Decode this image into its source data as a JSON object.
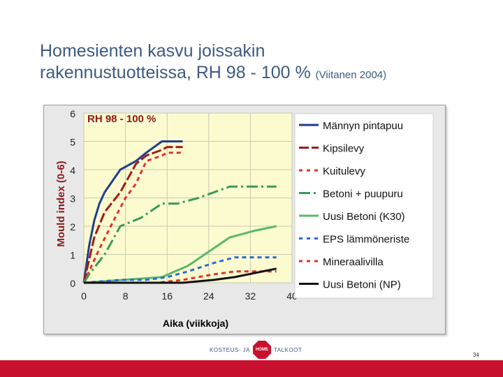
{
  "slide": {
    "title_line1": "Homesienten kasvu joissakin",
    "title_line2": "rakennustuotteissa, RH 98 - 100 %",
    "title_source": "(Viitanen 2004)",
    "page_number": "34",
    "logo_left": "KOSTEUS- JA",
    "logo_sign": "HOME",
    "logo_right": "TALKOOT"
  },
  "colors": {
    "plot_bg": "#fbfbcf",
    "frame_bg": "#e8e8e8",
    "title": "#3d5a80",
    "footer": "#c8102e"
  },
  "chart_data": {
    "type": "line",
    "title": "RH 98 - 100 %",
    "xlabel": "Aika (viikkoja)",
    "ylabel": "Mould index (0-6)",
    "xlim": [
      0,
      40
    ],
    "ylim": [
      0,
      6
    ],
    "xticks": [
      0,
      8,
      16,
      24,
      32,
      40
    ],
    "yticks": [
      0,
      1,
      2,
      3,
      4,
      5,
      6
    ],
    "grid": true,
    "legend_position": "right",
    "series": [
      {
        "name": "Männyn pintapuu",
        "color": "#1f3f8f",
        "dash": "solid",
        "x": [
          0,
          1,
          2,
          3,
          4,
          7,
          10,
          12,
          15,
          16,
          19
        ],
        "y": [
          0,
          1.3,
          2.2,
          2.8,
          3.2,
          4.0,
          4.3,
          4.6,
          5.0,
          5.0,
          5.0
        ]
      },
      {
        "name": "Kipsilevy",
        "color": "#a01a1a",
        "dash": "longdash",
        "x": [
          0,
          2,
          4,
          7,
          10,
          12,
          15,
          16,
          19
        ],
        "y": [
          0,
          1.6,
          2.5,
          3.2,
          4.2,
          4.5,
          4.7,
          4.8,
          4.8
        ]
      },
      {
        "name": "Kuitulevy",
        "color": "#e03030",
        "dash": "dash",
        "x": [
          0,
          3,
          6,
          8,
          10,
          12,
          15,
          16,
          19
        ],
        "y": [
          0,
          1.2,
          2.3,
          3.0,
          3.5,
          4.3,
          4.5,
          4.6,
          4.6
        ]
      },
      {
        "name": "Betoni + puupuru",
        "color": "#3a9a5a",
        "dash": "dashdot",
        "x": [
          0,
          1,
          4,
          7,
          11,
          15,
          18,
          22,
          28,
          32,
          35,
          37
        ],
        "y": [
          0,
          0.3,
          1.0,
          2.0,
          2.3,
          2.8,
          2.8,
          3.0,
          3.4,
          3.4,
          3.4,
          3.4
        ]
      },
      {
        "name": "Uusi Betoni (K30)",
        "color": "#5ab86a",
        "dash": "solid",
        "x": [
          0,
          15,
          20,
          28,
          33,
          37
        ],
        "y": [
          0,
          0.2,
          0.6,
          1.6,
          1.85,
          2.0
        ]
      },
      {
        "name": "EPS lämmöneriste",
        "color": "#2a6ad8",
        "dash": "dash",
        "x": [
          0,
          7,
          12,
          16,
          20,
          25,
          29,
          33,
          37
        ],
        "y": [
          0,
          0.1,
          0.1,
          0.2,
          0.4,
          0.7,
          0.9,
          0.9,
          0.9
        ]
      },
      {
        "name": "Mineraalivilla",
        "color": "#e03030",
        "dash": "dash",
        "x": [
          0,
          14,
          19,
          25,
          29,
          33,
          37
        ],
        "y": [
          0,
          0.0,
          0.1,
          0.3,
          0.4,
          0.4,
          0.4
        ]
      },
      {
        "name": "Uusi Betoni (NP)",
        "color": "#111111",
        "dash": "solid",
        "x": [
          0,
          19,
          25,
          29,
          33,
          37
        ],
        "y": [
          0,
          0.0,
          0.1,
          0.2,
          0.35,
          0.5
        ]
      }
    ]
  }
}
